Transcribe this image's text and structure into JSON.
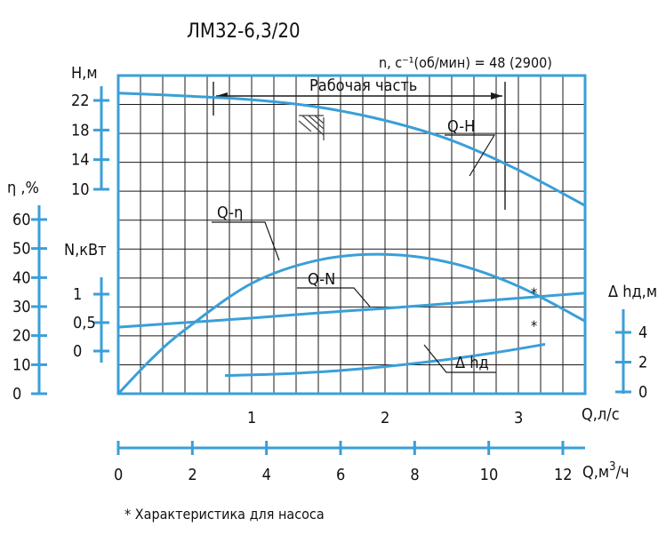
{
  "colors": {
    "frame": "#3a9fd8",
    "curve": "#3a9fd8",
    "grid": "#1a1a1a",
    "text": "#111111",
    "hatch": "#444444"
  },
  "chart_data": {
    "type": "line",
    "title": "ЛМ32-6,3/20",
    "subtitle": "n, c⁻¹(об/мин) = 48 (2900)",
    "working_range_label": "Рабочая часть",
    "working_range_q": [
      0.8,
      3.25
    ],
    "footnote": "*   Характеристика для насоса",
    "x": {
      "label": "Q,л/с",
      "range": [
        0,
        3.5
      ],
      "ticks": [
        1,
        2,
        3
      ],
      "tick_labels": [
        "1",
        "2",
        "3"
      ]
    },
    "x2": {
      "label": "Q,м³/ч",
      "unit_base": "Q,м",
      "unit_sup": "3",
      "unit_tail": "/ч",
      "ticks": [
        0,
        2,
        4,
        6,
        8,
        10,
        12
      ],
      "tick_labels": [
        "0",
        "2",
        "4",
        "6",
        "8",
        "10",
        "12"
      ]
    },
    "axes": {
      "H": {
        "label": "H,м",
        "ticks": [
          22,
          18,
          14,
          10
        ],
        "tick_labels": [
          "22",
          "18",
          "14",
          "10"
        ]
      },
      "eta": {
        "label": "η ,%",
        "ticks": [
          60,
          50,
          40,
          30,
          20,
          10,
          0
        ],
        "tick_labels": [
          "60",
          "50",
          "40",
          "30",
          "20",
          "10",
          "0"
        ]
      },
      "N": {
        "label": "N,кВт",
        "ticks": [
          1,
          0.5,
          0
        ],
        "tick_labels": [
          "1",
          "0,5",
          "0"
        ]
      },
      "dh": {
        "label": "Δ hд,м",
        "ticks": [
          4,
          2,
          0
        ],
        "tick_labels": [
          "4",
          "2",
          "0"
        ]
      }
    },
    "series": [
      {
        "name": "Q-H",
        "axis": "H",
        "x": [
          0,
          0.5,
          1.0,
          1.5,
          2.0,
          2.5,
          3.0,
          3.5
        ],
        "y": [
          23,
          22.6,
          22.1,
          21.1,
          19.3,
          16.6,
          12.6,
          7.8
        ]
      },
      {
        "name": "Q-η",
        "axis": "eta",
        "x": [
          0,
          0.25,
          0.5,
          1.0,
          1.5,
          2.0,
          2.5,
          3.0,
          3.5
        ],
        "y": [
          0,
          12,
          22,
          38,
          46,
          48,
          45,
          37,
          25
        ]
      },
      {
        "name": "Q-N",
        "axis": "N",
        "x": [
          0,
          0.5,
          1.0,
          1.5,
          2.0,
          2.5,
          3.0,
          3.5
        ],
        "y": [
          0.42,
          0.5,
          0.58,
          0.67,
          0.75,
          0.84,
          0.93,
          1.02
        ]
      },
      {
        "name": "Δ hд",
        "axis": "dh",
        "x": [
          0.8,
          1.2,
          1.6,
          2.0,
          2.4,
          2.8,
          3.2
        ],
        "y": [
          1.1,
          1.2,
          1.4,
          1.7,
          2.1,
          2.6,
          3.2
        ]
      }
    ],
    "curve_labels": {
      "qh": "Q-H",
      "qeta": "Q-η",
      "qn": "Q-N",
      "dh": "Δ hд"
    },
    "markers": {
      "star": "*"
    },
    "grid": true
  }
}
